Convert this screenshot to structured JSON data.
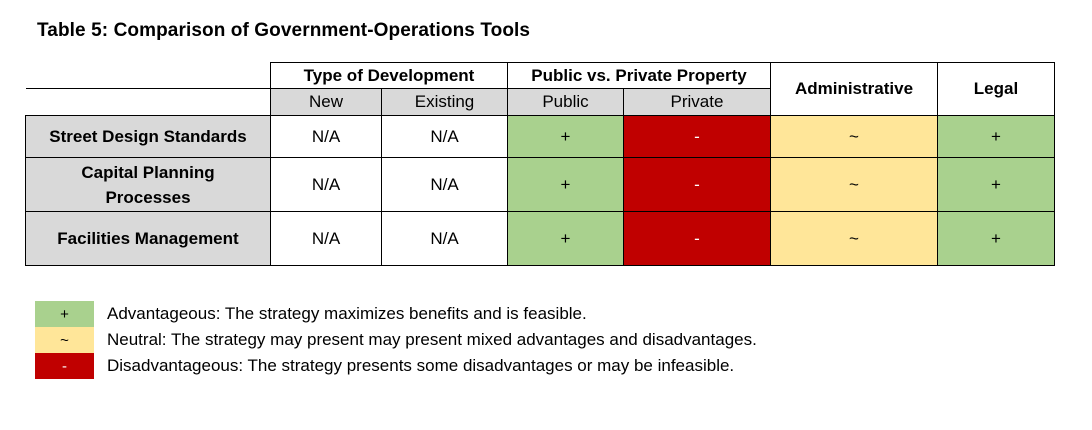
{
  "title": "Table 5: Comparison of Government-Operations Tools",
  "headers": {
    "type_of_development": "Type of Development",
    "public_vs_private": "Public vs. Private Property",
    "administrative": "Administrative",
    "legal": "Legal",
    "new": "New",
    "existing": "Existing",
    "public": "Public",
    "private": "Private"
  },
  "rows": [
    {
      "label": "Street Design Standards",
      "new": "N/A",
      "existing": "N/A",
      "public": "+",
      "private": "-",
      "administrative": "~",
      "legal": "+"
    },
    {
      "label": "Capital Planning Processes",
      "new": "N/A",
      "existing": "N/A",
      "public": "+",
      "private": "-",
      "administrative": "~",
      "legal": "+"
    },
    {
      "label": "Facilities Management",
      "new": "N/A",
      "existing": "N/A",
      "public": "+",
      "private": "-",
      "administrative": "~",
      "legal": "+"
    }
  ],
  "legend": [
    {
      "symbol": "+",
      "color": "#a9d18e",
      "text": "Advantageous: The strategy maximizes benefits and is feasible."
    },
    {
      "symbol": "~",
      "color": "#ffe699",
      "text": "Neutral: The strategy may present may present mixed advantages and disadvantages."
    },
    {
      "symbol": "-",
      "color": "#c00000",
      "text": "Disadvantageous: The strategy presents some disadvantages or may be infeasible."
    }
  ],
  "colors": {
    "advantageous": "#a9d18e",
    "neutral": "#ffe699",
    "disadvantageous": "#c00000",
    "header_gray": "#d9d9d9"
  }
}
